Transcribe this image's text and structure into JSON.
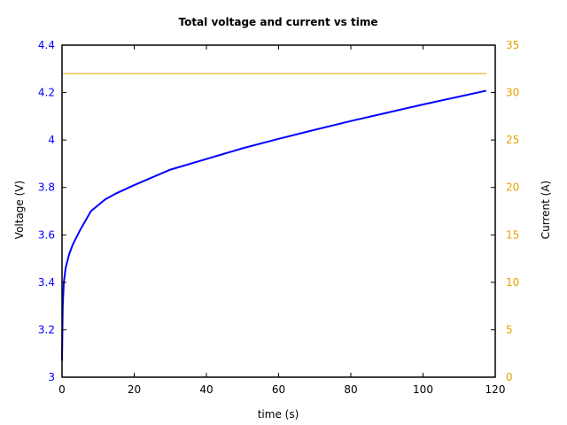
{
  "chart_data": {
    "type": "line",
    "title": "Total voltage and current vs time",
    "xlabel": "time (s)",
    "ylabel": "Voltage (V)",
    "y2label": "Current (A)",
    "xlim": [
      0,
      120
    ],
    "ylim": [
      3,
      4.4
    ],
    "y2lim": [
      0,
      35
    ],
    "xticks": [
      "0",
      "20",
      "40",
      "60",
      "80",
      "100",
      "120"
    ],
    "yticks": [
      "3",
      "3.2",
      "3.4",
      "3.6",
      "3.8",
      "4",
      "4.2",
      "4.4"
    ],
    "y2ticks": [
      "0",
      "5",
      "10",
      "15",
      "20",
      "25",
      "30",
      "35"
    ],
    "grid": false,
    "series": [
      {
        "name": "Voltage",
        "axis": "left",
        "color": "#0000ff",
        "x": [
          0,
          0.2,
          0.5,
          1,
          2,
          3,
          5,
          8,
          12,
          15,
          20,
          30,
          40,
          50,
          60,
          70,
          80,
          90,
          100,
          110,
          117.5
        ],
        "y": [
          3.07,
          3.3,
          3.4,
          3.46,
          3.52,
          3.56,
          3.62,
          3.7,
          3.75,
          3.775,
          3.81,
          3.875,
          3.92,
          3.965,
          4.005,
          4.043,
          4.08,
          4.115,
          4.15,
          4.183,
          4.208
        ]
      },
      {
        "name": "Current",
        "axis": "right",
        "color": "#e6a000",
        "x": [
          0,
          117.5
        ],
        "y": [
          32,
          32
        ]
      }
    ]
  }
}
